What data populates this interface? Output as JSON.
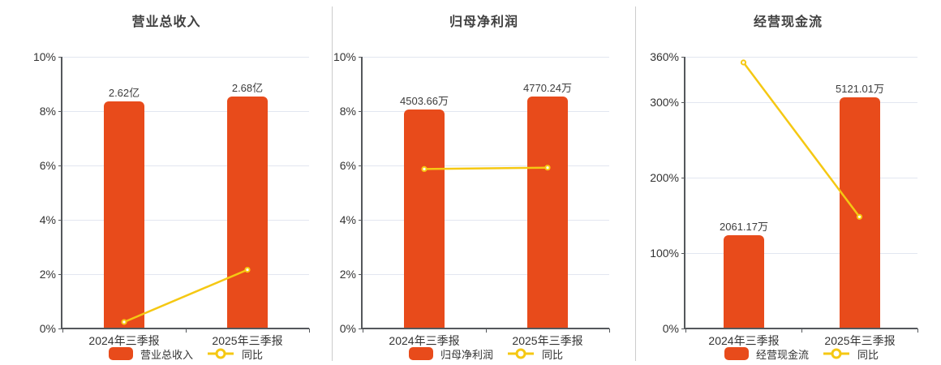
{
  "colors": {
    "bar": "#e84b1b",
    "line": "#f5c813",
    "marker_fill": "#ffffff",
    "grid": "#e2e6f0",
    "axis": "#55585c",
    "text": "#333333",
    "title": "#404040",
    "separator": "#cccccc"
  },
  "chart_data": [
    {
      "type": "bar",
      "title": "营业总收入",
      "categories": [
        "2024年三季报",
        "2025年三季报"
      ],
      "series": [
        {
          "name": "营业总收入",
          "type": "bar",
          "value_labels": [
            "2.62亿",
            "2.68亿"
          ],
          "display_pct_on_axis": [
            8.35,
            8.54
          ]
        },
        {
          "name": "同比",
          "type": "line",
          "values_pct": [
            0.24,
            2.16
          ]
        }
      ],
      "y_axis": {
        "tick_labels": [
          "0%",
          "2%",
          "4%",
          "6%",
          "8%",
          "10%"
        ],
        "tick_values": [
          0,
          2,
          4,
          6,
          8,
          10
        ],
        "range": [
          0,
          10
        ]
      },
      "legend_position": "bottom",
      "grid": true
    },
    {
      "type": "bar",
      "title": "归母净利润",
      "categories": [
        "2024年三季报",
        "2025年三季报"
      ],
      "series": [
        {
          "name": "归母净利润",
          "type": "bar",
          "value_labels": [
            "4503.66万",
            "4770.24万"
          ],
          "display_pct_on_axis": [
            8.05,
            8.53
          ]
        },
        {
          "name": "同比",
          "type": "line",
          "values_pct": [
            5.87,
            5.92
          ]
        }
      ],
      "y_axis": {
        "tick_labels": [
          "0%",
          "2%",
          "4%",
          "6%",
          "8%",
          "10%"
        ],
        "tick_values": [
          0,
          2,
          4,
          6,
          8,
          10
        ],
        "range": [
          0,
          10
        ]
      },
      "legend_position": "bottom",
      "grid": true
    },
    {
      "type": "bar",
      "title": "经营现金流",
      "categories": [
        "2024年三季报",
        "2025年三季报"
      ],
      "series": [
        {
          "name": "经营现金流",
          "type": "bar",
          "value_labels": [
            "2061.17万",
            "5121.01万"
          ],
          "display_pct_on_axis": [
            123.2,
            306
          ]
        },
        {
          "name": "同比",
          "type": "line",
          "values_pct": [
            352.5,
            148
          ]
        }
      ],
      "y_axis": {
        "tick_labels": [
          "0%",
          "100%",
          "200%",
          "300%",
          "360%"
        ],
        "tick_values": [
          0,
          100,
          200,
          300,
          360
        ],
        "range": [
          0,
          360
        ]
      },
      "legend_position": "bottom",
      "grid": true
    }
  ]
}
